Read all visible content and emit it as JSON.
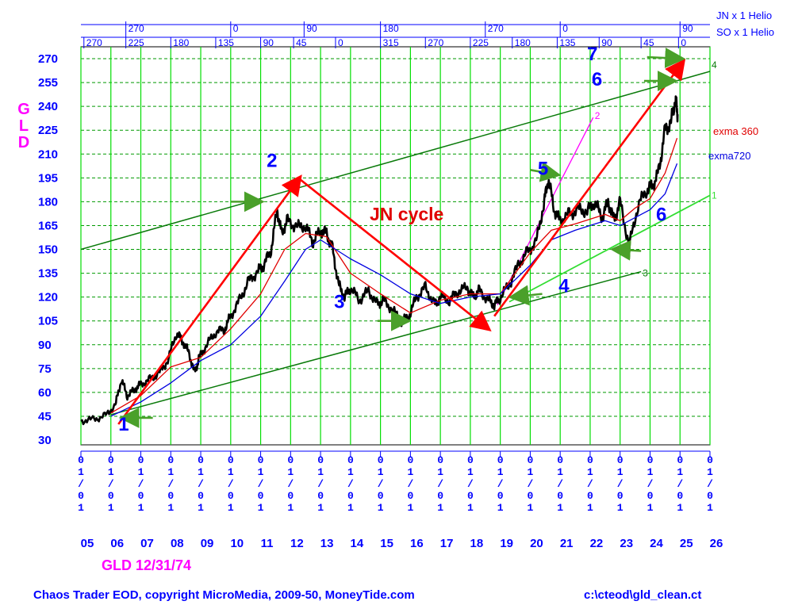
{
  "chart_data": {
    "type": "line",
    "title": "JN cycle",
    "ylabel": "GLD",
    "ylim": [
      30,
      270
    ],
    "yticks": [
      30,
      45,
      60,
      75,
      90,
      105,
      120,
      135,
      150,
      165,
      180,
      195,
      210,
      225,
      240,
      255,
      270
    ],
    "xlim": [
      2005,
      2026
    ],
    "xtick_years": [
      "05",
      "06",
      "07",
      "08",
      "09",
      "10",
      "11",
      "12",
      "13",
      "14",
      "15",
      "16",
      "17",
      "18",
      "19",
      "20",
      "21",
      "22",
      "23",
      "24",
      "25",
      "26"
    ],
    "xtick_date_label": "01/01",
    "grid": true,
    "top_scale_labels": {
      "jn": [
        "270",
        "0",
        "90",
        "180",
        "270",
        "0",
        "90"
      ],
      "so": [
        "270",
        "225",
        "180",
        "135",
        "90",
        "45",
        "0",
        "315",
        "270",
        "225",
        "180",
        "135",
        "90",
        "45",
        "0"
      ]
    },
    "helio_labels": [
      "JN x 1 Helio",
      "SO x 1 Helio"
    ],
    "series": [
      {
        "name": "GLD",
        "color": "#000000",
        "x": [
          2005.0,
          2005.4,
          2005.8,
          2006.15,
          2006.35,
          2006.55,
          2006.8,
          2007.0,
          2007.3,
          2007.6,
          2007.9,
          2008.2,
          2008.4,
          2008.6,
          2008.8,
          2008.95,
          2009.2,
          2009.5,
          2009.8,
          2010.0,
          2010.3,
          2010.6,
          2010.9,
          2011.1,
          2011.35,
          2011.55,
          2011.7,
          2011.9,
          2012.2,
          2012.5,
          2012.75,
          2013.0,
          2013.2,
          2013.4,
          2013.6,
          2013.8,
          2014.0,
          2014.3,
          2014.6,
          2014.9,
          2015.1,
          2015.4,
          2015.7,
          2015.95,
          2016.2,
          2016.5,
          2016.8,
          2017.0,
          2017.3,
          2017.6,
          2017.9,
          2018.1,
          2018.3,
          2018.6,
          2018.8,
          2019.0,
          2019.3,
          2019.6,
          2019.9,
          2020.2,
          2020.45,
          2020.6,
          2020.8,
          2021.0,
          2021.3,
          2021.6,
          2021.9,
          2022.15,
          2022.4,
          2022.6,
          2022.8,
          2023.0,
          2023.3,
          2023.6,
          2023.9,
          2024.1,
          2024.3,
          2024.5,
          2024.7,
          2024.85,
          2024.92
        ],
        "values": [
          42,
          43,
          45,
          52,
          68,
          58,
          62,
          65,
          68,
          72,
          80,
          98,
          92,
          85,
          72,
          82,
          90,
          98,
          100,
          108,
          118,
          130,
          136,
          140,
          150,
          175,
          160,
          168,
          164,
          165,
          155,
          162,
          160,
          150,
          128,
          120,
          126,
          118,
          124,
          115,
          118,
          112,
          105,
          108,
          120,
          126,
          115,
          120,
          118,
          124,
          126,
          120,
          124,
          118,
          115,
          120,
          128,
          140,
          148,
          155,
          178,
          195,
          175,
          168,
          172,
          175,
          174,
          180,
          170,
          180,
          168,
          180,
          152,
          178,
          188,
          190,
          200,
          225,
          230,
          245,
          235
        ]
      },
      {
        "name": "exma 360",
        "color": "#e00000",
        "x": [
          2006.0,
          2007.0,
          2008.0,
          2009.0,
          2010.0,
          2011.0,
          2011.8,
          2012.5,
          2013.2,
          2014.0,
          2015.0,
          2016.0,
          2017.0,
          2018.0,
          2019.0,
          2020.0,
          2020.7,
          2021.5,
          2022.5,
          2023.0,
          2023.5,
          2024.0,
          2024.5,
          2024.9
        ],
        "values": [
          47,
          58,
          76,
          82,
          100,
          122,
          150,
          160,
          158,
          135,
          122,
          110,
          118,
          122,
          122,
          148,
          162,
          166,
          172,
          168,
          176,
          182,
          198,
          220
        ]
      },
      {
        "name": "exma720",
        "color": "#0000e0",
        "x": [
          2006.0,
          2007.0,
          2008.0,
          2009.0,
          2010.0,
          2011.0,
          2011.8,
          2012.5,
          2013.0,
          2014.0,
          2015.0,
          2016.0,
          2017.0,
          2018.0,
          2019.0,
          2020.0,
          2020.7,
          2021.5,
          2022.5,
          2023.0,
          2023.5,
          2024.0,
          2024.5,
          2024.9
        ],
        "values": [
          45,
          54,
          66,
          80,
          90,
          108,
          130,
          150,
          156,
          144,
          134,
          122,
          116,
          120,
          122,
          140,
          156,
          162,
          168,
          165,
          170,
          175,
          185,
          204
        ]
      }
    ],
    "series_labels": [
      "exma 360",
      "exma720"
    ],
    "channel_lines": [
      "4",
      "3",
      "2",
      "1"
    ],
    "annotations": {
      "waves": [
        "1",
        "2",
        "3",
        "4",
        "5",
        "6",
        "6",
        "7"
      ],
      "title": "JN cycle"
    }
  },
  "footer": {
    "ticker_date": "GLD 12/31/74",
    "copyright": "Chaos Trader EOD, copyright MicroMedia, 2009-50, MoneyTide.com",
    "path": "c:\\cteod\\gld_clean.ct"
  },
  "colors": {
    "axis_text": "#0000ff",
    "grid_vertical": "#00dd00",
    "grid_horizontal": "#009900",
    "price": "#000000",
    "ema360": "#e00000",
    "ema720": "#0000e0",
    "arrows": "#ff0000",
    "pointer_arrows": "#4aa02a",
    "magenta": "#ff00ff"
  }
}
